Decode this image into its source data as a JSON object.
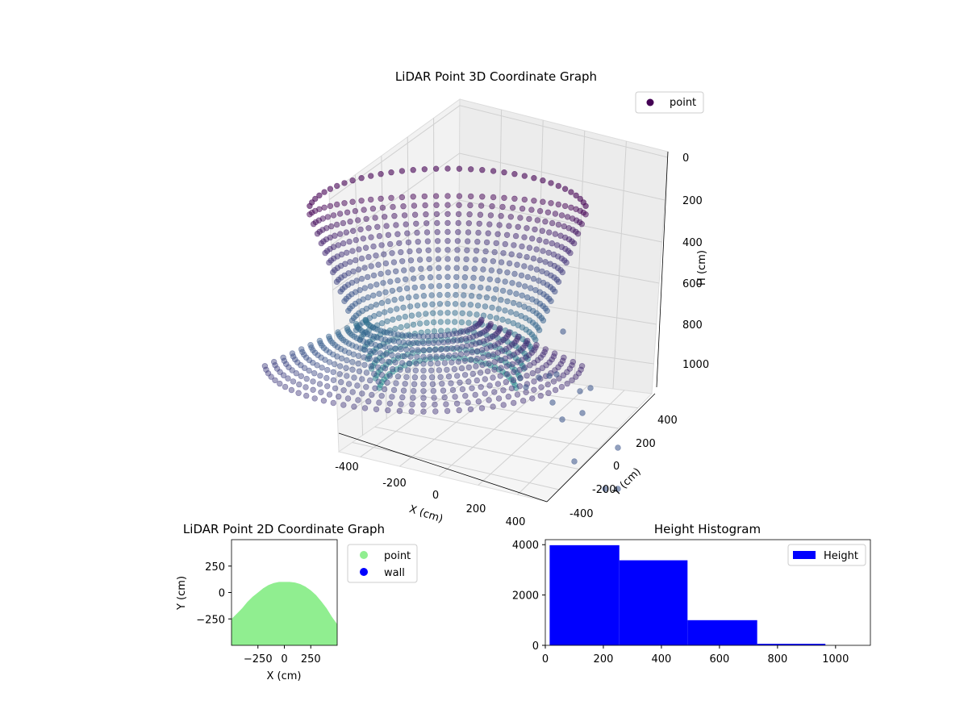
{
  "chart_data": [
    {
      "type": "scatter",
      "projection": "3d",
      "title": "LiDAR Point 3D Coordinate Graph",
      "xlabel": "X (cm)",
      "ylabel": "Y (cm)",
      "zlabel": "H (cm)",
      "xticks": [
        "-400",
        "-200",
        "0",
        "200",
        "400"
      ],
      "yticks": [
        "-400",
        "-200",
        "0",
        "200",
        "400"
      ],
      "zticks": [
        "0",
        "200",
        "400",
        "600",
        "800",
        "1000"
      ],
      "xlim": [
        -500,
        500
      ],
      "ylim": [
        -500,
        500
      ],
      "zlim": [
        0,
        1100
      ],
      "z_axis_inverted": true,
      "grid": true,
      "colormap": "viridis",
      "color_by": "height",
      "legend": {
        "placement": "upper-right",
        "entries": [
          {
            "label": "point",
            "color": "#440154"
          }
        ]
      },
      "shape": "cylindrical fan of points around the sensor, radius about 500 cm",
      "series": [
        {
          "name": "point"
        }
      ]
    },
    {
      "type": "area",
      "title": "LiDAR Point 2D Coordinate Graph",
      "xlabel": "X (cm)",
      "ylabel": "Y (cm)",
      "xticks": [
        "−250",
        "0",
        "250"
      ],
      "yticks": [
        "−250",
        "0",
        "250"
      ],
      "xlim": [
        -500,
        500
      ],
      "ylim": [
        -500,
        500
      ],
      "legend": {
        "placement": "outside-right",
        "entries": [
          {
            "label": "point",
            "color": "#90ee90"
          },
          {
            "label": "wall",
            "color": "#0000ff"
          }
        ]
      },
      "series": [
        {
          "name": "point",
          "color": "#90ee90",
          "x": [
            -500,
            -450,
            -400,
            -350,
            -300,
            -250,
            -200,
            -150,
            -100,
            -50,
            0,
            50,
            100,
            150,
            200,
            250,
            300,
            350,
            400,
            450,
            500
          ],
          "y": [
            -250,
            -200,
            -150,
            -90,
            -40,
            0,
            40,
            70,
            90,
            100,
            100,
            100,
            95,
            80,
            55,
            20,
            -25,
            -85,
            -150,
            -230,
            -300
          ]
        }
      ]
    },
    {
      "type": "bar",
      "title": "Height Histogram",
      "xlabel": "",
      "ylabel": "",
      "xticks": [
        "0",
        "200",
        "400",
        "600",
        "800",
        "1000"
      ],
      "yticks": [
        "0",
        "2000",
        "4000"
      ],
      "xlim": [
        0,
        1120
      ],
      "ylim": [
        0,
        4200
      ],
      "grid": false,
      "legend": {
        "placement": "upper-right",
        "entries": [
          {
            "label": "Height",
            "color": "#0000ff"
          }
        ]
      },
      "series": [
        {
          "name": "Height",
          "color": "#0000ff",
          "bins": [
            {
              "from": 15,
              "to": 255,
              "count": 3980
            },
            {
              "from": 255,
              "to": 490,
              "count": 3380
            },
            {
              "from": 490,
              "to": 730,
              "count": 1000
            },
            {
              "from": 730,
              "to": 965,
              "count": 60
            },
            {
              "from": 965,
              "to": 1080,
              "count": 0
            }
          ]
        }
      ]
    }
  ]
}
